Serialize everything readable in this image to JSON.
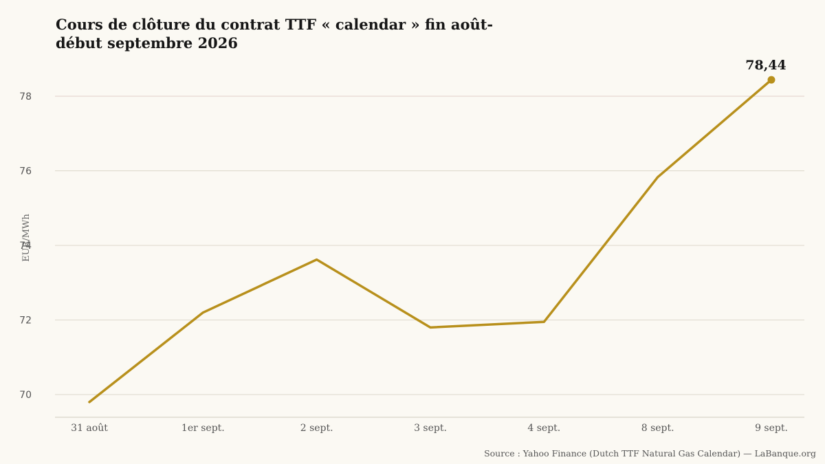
{
  "title": "Cours de clôture du contrat TTF « calendar » fin août-début septembre 2026",
  "source": "Source : Yahoo Finance (Dutch TTF Natural Gas Calendar) — LaBanque.org",
  "chart_data": {
    "type": "line",
    "title": "Cours de clôture du contrat TTF « calendar » fin août-début septembre 2026",
    "xlabel": "",
    "ylabel": "EUR/MWh",
    "categories": [
      "31 août",
      "1er sept.",
      "2 sept.",
      "3 sept.",
      "4 sept.",
      "8 sept.",
      "9 sept."
    ],
    "series": [
      {
        "values": [
          69.8,
          72.2,
          73.62,
          71.8,
          71.95,
          75.83,
          78.44
        ],
        "color": "#b8901c"
      }
    ],
    "yticks": [
      70,
      72,
      74,
      76,
      78
    ],
    "ylim": [
      69.4,
      79.2
    ],
    "grid": true,
    "annotations": [
      {
        "category": "9 sept.",
        "value": 78.44,
        "label": "78,44"
      }
    ]
  }
}
